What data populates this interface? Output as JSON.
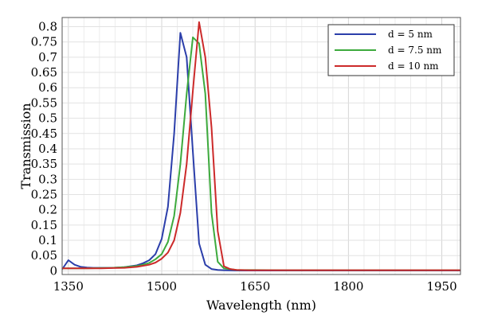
{
  "chart_data": {
    "type": "line",
    "xlabel": "Wavelength (nm)",
    "ylabel": "Transmission",
    "xlim": [
      1340,
      1980
    ],
    "ylim": [
      -0.012,
      0.83
    ],
    "x_ticks": [
      1350,
      1500,
      1650,
      1800,
      1950
    ],
    "y_ticks": [
      0,
      0.05,
      0.1,
      0.15,
      0.2,
      0.25,
      0.3,
      0.35,
      0.4,
      0.45,
      0.5,
      0.55,
      0.6,
      0.65,
      0.7,
      0.75,
      0.8
    ],
    "y_tick_labels": [
      "0",
      "0.05",
      "0.1",
      "0.15",
      "0.2",
      "0.25",
      "0.3",
      "0.35",
      "0.4",
      "0.45",
      "0.5",
      "0.55",
      "0.6",
      "0.65",
      "0.7",
      "0.75",
      "0.8"
    ],
    "grid": true,
    "legend_position": "top-right",
    "series": [
      {
        "name": "d = 5 nm",
        "color": "#2b3eaa",
        "x": [
          1340,
          1350,
          1360,
          1370,
          1380,
          1390,
          1400,
          1420,
          1440,
          1460,
          1470,
          1480,
          1490,
          1500,
          1510,
          1520,
          1530,
          1540,
          1550,
          1560,
          1570,
          1580,
          1590,
          1600,
          1620,
          1700,
          1800,
          1900,
          1980
        ],
        "y": [
          0.005,
          0.035,
          0.02,
          0.013,
          0.011,
          0.01,
          0.01,
          0.01,
          0.012,
          0.018,
          0.025,
          0.035,
          0.055,
          0.105,
          0.21,
          0.45,
          0.78,
          0.7,
          0.39,
          0.09,
          0.02,
          0.006,
          0.003,
          0.002,
          0.001,
          0.001,
          0.001,
          0.001,
          0.001
        ]
      },
      {
        "name": "d = 7.5 nm",
        "color": "#3daa3d",
        "x": [
          1340,
          1360,
          1380,
          1400,
          1420,
          1440,
          1460,
          1470,
          1480,
          1490,
          1500,
          1510,
          1520,
          1530,
          1540,
          1550,
          1560,
          1570,
          1580,
          1590,
          1600,
          1620,
          1700,
          1800,
          1900,
          1980
        ],
        "y": [
          0.008,
          0.008,
          0.008,
          0.009,
          0.01,
          0.012,
          0.016,
          0.02,
          0.026,
          0.038,
          0.055,
          0.095,
          0.18,
          0.35,
          0.58,
          0.765,
          0.745,
          0.58,
          0.19,
          0.03,
          0.008,
          0.003,
          0.002,
          0.002,
          0.002,
          0.002
        ]
      },
      {
        "name": "d = 10 nm",
        "color": "#cc2a2a",
        "x": [
          1340,
          1360,
          1380,
          1400,
          1420,
          1440,
          1460,
          1480,
          1490,
          1500,
          1510,
          1520,
          1530,
          1540,
          1550,
          1560,
          1570,
          1580,
          1590,
          1600,
          1610,
          1620,
          1640,
          1700,
          1800,
          1900,
          1980
        ],
        "y": [
          0.008,
          0.008,
          0.008,
          0.008,
          0.009,
          0.01,
          0.013,
          0.02,
          0.027,
          0.04,
          0.06,
          0.1,
          0.19,
          0.35,
          0.59,
          0.815,
          0.7,
          0.47,
          0.13,
          0.015,
          0.006,
          0.003,
          0.002,
          0.002,
          0.002,
          0.002,
          0.002
        ]
      }
    ]
  }
}
